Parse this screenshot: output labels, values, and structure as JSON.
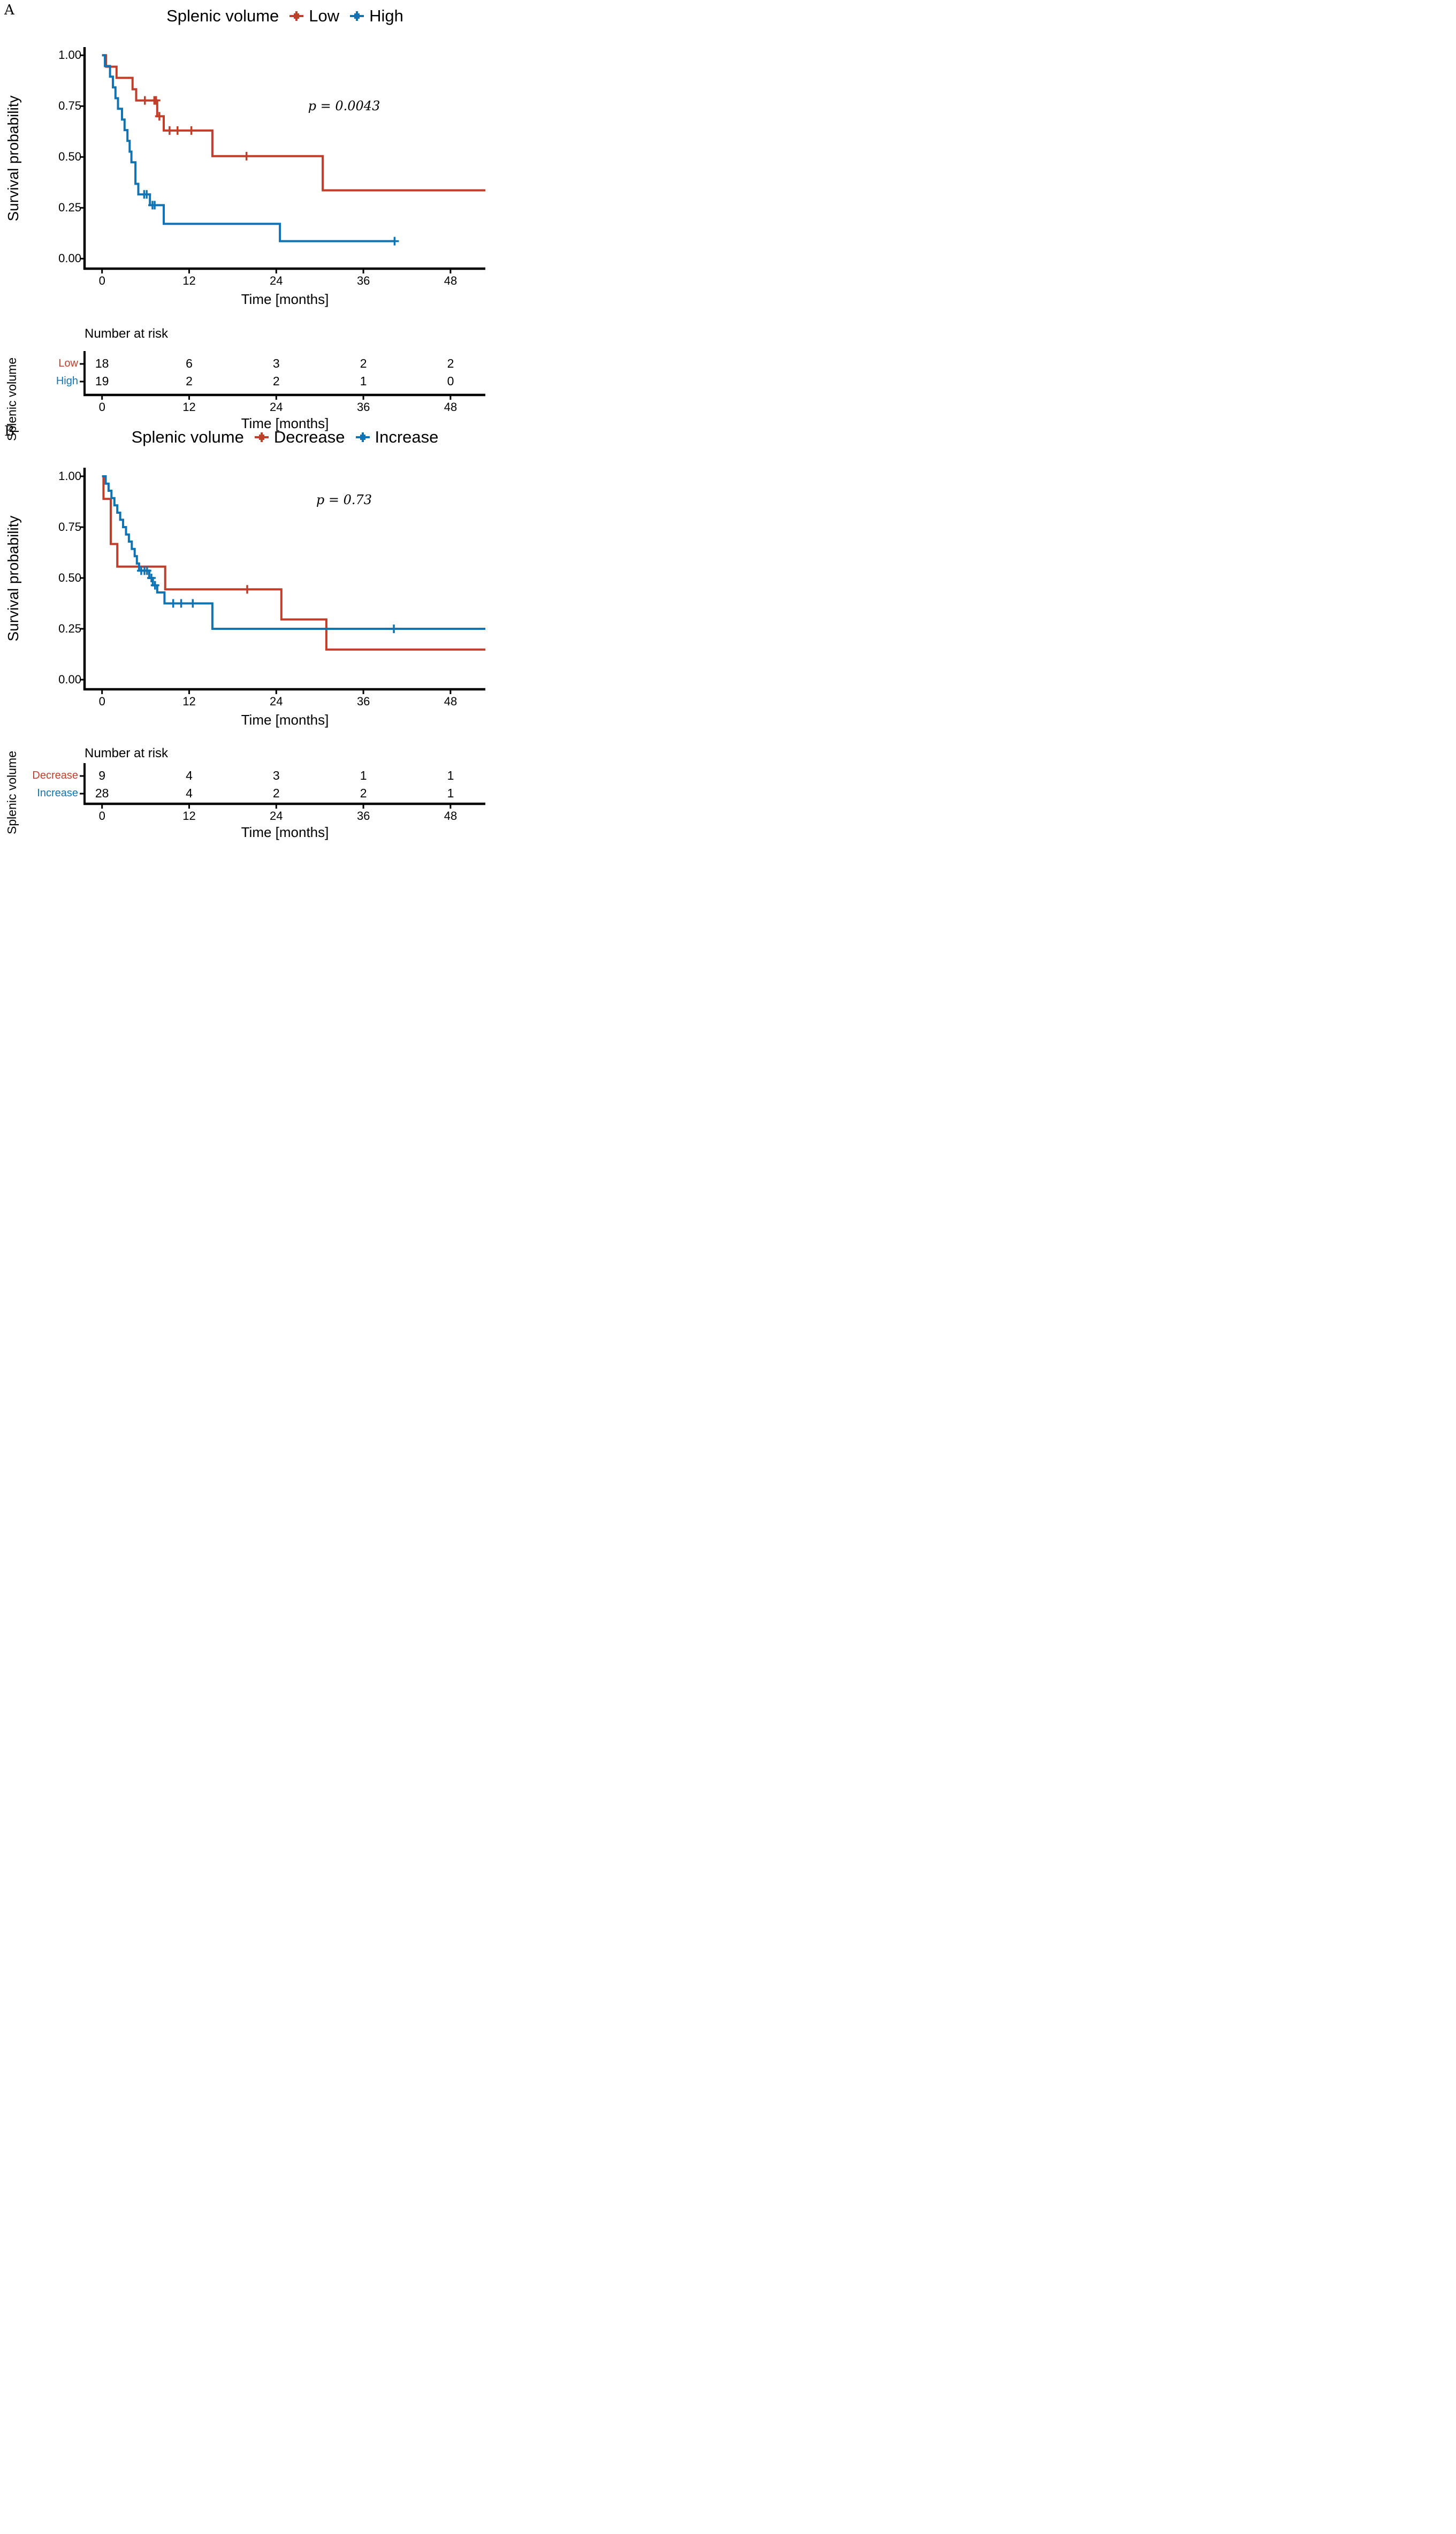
{
  "chart_data": [
    {
      "type": "line",
      "subtype": "kaplan_meier_step",
      "panel_label": "A",
      "title": "Splenic volume",
      "p_value": "p = 0.0043",
      "xlabel": "Time [months]",
      "ylabel": "Survival probability",
      "xticks": [
        0,
        12,
        24,
        36,
        48
      ],
      "ytick_labels": [
        "1.00",
        "0.75",
        "0.50",
        "0.25",
        "0.00"
      ],
      "xlim": [
        -1.6,
        52.8
      ],
      "ylim": [
        0,
        1
      ],
      "legend_position": "top",
      "grid": false,
      "series": [
        {
          "name": "Low",
          "color": "#c13e2a",
          "end": 52.8,
          "steps": [
            [
              0,
              1.0
            ],
            [
              0.55,
              0.944
            ],
            [
              2.0,
              0.889
            ],
            [
              4.2,
              0.833
            ],
            [
              4.7,
              0.778
            ],
            [
              7.6,
              0.7
            ],
            [
              8.5,
              0.63
            ],
            [
              15.2,
              0.504
            ],
            [
              30.4,
              0.336
            ]
          ],
          "censors": [
            [
              5.9,
              0.778
            ],
            [
              7.2,
              0.778
            ],
            [
              7.45,
              0.778
            ],
            [
              7.9,
              0.7
            ],
            [
              9.3,
              0.63
            ],
            [
              10.4,
              0.63
            ],
            [
              12.3,
              0.63
            ],
            [
              19.9,
              0.504
            ]
          ]
        },
        {
          "name": "High",
          "color": "#1074b4",
          "end": 40.4,
          "steps": [
            [
              0,
              1.0
            ],
            [
              0.4,
              0.947
            ],
            [
              1.1,
              0.895
            ],
            [
              1.5,
              0.842
            ],
            [
              1.85,
              0.789
            ],
            [
              2.2,
              0.737
            ],
            [
              2.75,
              0.684
            ],
            [
              3.1,
              0.632
            ],
            [
              3.5,
              0.579
            ],
            [
              3.8,
              0.526
            ],
            [
              4.05,
              0.474
            ],
            [
              4.6,
              0.368
            ],
            [
              5.0,
              0.316
            ],
            [
              6.6,
              0.263
            ],
            [
              8.5,
              0.171
            ],
            [
              24.5,
              0.086
            ]
          ],
          "censors": [
            [
              5.8,
              0.316
            ],
            [
              6.15,
              0.316
            ],
            [
              6.95,
              0.263
            ],
            [
              7.25,
              0.263
            ],
            [
              40.3,
              0.086
            ]
          ]
        }
      ],
      "risk_table": {
        "header": "Number at risk",
        "group_label": "Splenic volume",
        "xlabel": "Time [months]",
        "rows": [
          {
            "name": "Low",
            "color": "#c13e2a",
            "values": [
              "18",
              "6",
              "3",
              "2",
              "2"
            ]
          },
          {
            "name": "High",
            "color": "#1074b4",
            "values": [
              "19",
              "2",
              "2",
              "1",
              "0"
            ]
          }
        ]
      }
    },
    {
      "type": "line",
      "subtype": "kaplan_meier_step",
      "panel_label": "B",
      "title": "Splenic volume",
      "p_value": "p = 0.73",
      "xlabel": "Time [months]",
      "ylabel": "Survival probability",
      "xticks": [
        0,
        12,
        24,
        36,
        48
      ],
      "ytick_labels": [
        "1.00",
        "0.75",
        "0.50",
        "0.25",
        "0.00"
      ],
      "xlim": [
        -1.6,
        52.8
      ],
      "ylim": [
        0,
        1
      ],
      "legend_position": "top",
      "grid": false,
      "series": [
        {
          "name": "Decrease",
          "color": "#c13e2a",
          "end": 52.8,
          "steps": [
            [
              0,
              1.0
            ],
            [
              0.2,
              0.889
            ],
            [
              1.2,
              0.667
            ],
            [
              2.1,
              0.556
            ],
            [
              8.7,
              0.444
            ],
            [
              24.7,
              0.296
            ],
            [
              30.9,
              0.148
            ]
          ],
          "censors": [
            [
              20.0,
              0.444
            ]
          ]
        },
        {
          "name": "Increase",
          "color": "#1074b4",
          "end": 52.8,
          "steps": [
            [
              0,
              1.0
            ],
            [
              0.5,
              0.964
            ],
            [
              0.9,
              0.929
            ],
            [
              1.3,
              0.893
            ],
            [
              1.7,
              0.857
            ],
            [
              2.1,
              0.821
            ],
            [
              2.5,
              0.786
            ],
            [
              2.9,
              0.75
            ],
            [
              3.3,
              0.714
            ],
            [
              3.7,
              0.679
            ],
            [
              4.1,
              0.643
            ],
            [
              4.5,
              0.607
            ],
            [
              4.8,
              0.571
            ],
            [
              5.1,
              0.536
            ],
            [
              6.5,
              0.5
            ],
            [
              7.0,
              0.464
            ],
            [
              7.6,
              0.429
            ],
            [
              8.6,
              0.375
            ],
            [
              15.2,
              0.25
            ]
          ],
          "censors": [
            [
              5.4,
              0.536
            ],
            [
              5.85,
              0.536
            ],
            [
              6.2,
              0.536
            ],
            [
              6.8,
              0.5
            ],
            [
              7.3,
              0.464
            ],
            [
              9.8,
              0.375
            ],
            [
              10.9,
              0.375
            ],
            [
              12.5,
              0.375
            ],
            [
              40.2,
              0.25
            ]
          ]
        }
      ],
      "risk_table": {
        "header": "Number at risk",
        "group_label": "Splenic volume",
        "xlabel": "Time [months]",
        "rows": [
          {
            "name": "Decrease",
            "color": "#c13e2a",
            "values": [
              "9",
              "4",
              "3",
              "1",
              "1"
            ]
          },
          {
            "name": "Increase",
            "color": "#1074b4",
            "values": [
              "28",
              "4",
              "2",
              "2",
              "1"
            ]
          }
        ]
      }
    }
  ]
}
